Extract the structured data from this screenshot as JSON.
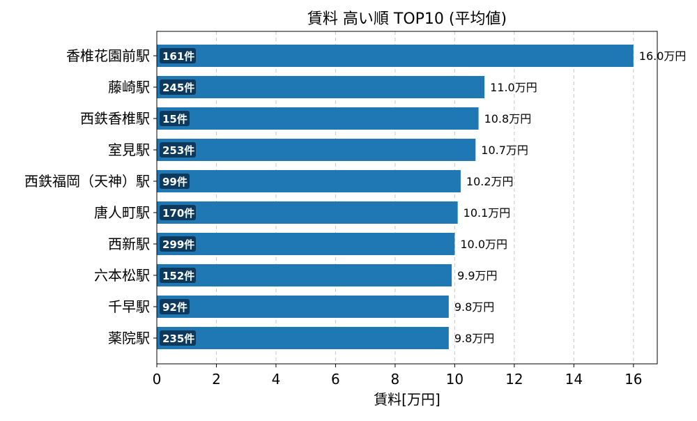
{
  "chart_data": {
    "type": "bar",
    "orientation": "horizontal",
    "title": "賃料 高い順 TOP10 (平均値)",
    "xlabel": "賃料[万円]",
    "ylabel": "",
    "xlim": [
      0,
      16.8
    ],
    "x_ticks": [
      0,
      2,
      4,
      6,
      8,
      10,
      12,
      14,
      16
    ],
    "grid": "x-dashed",
    "categories": [
      "香椎花園前駅",
      "藤崎駅",
      "西鉄香椎駅",
      "室見駅",
      "西鉄福岡（天神）駅",
      "唐人町駅",
      "西新駅",
      "六本松駅",
      "千早駅",
      "薬院駅"
    ],
    "values": [
      16.0,
      11.0,
      10.8,
      10.7,
      10.2,
      10.1,
      10.0,
      9.9,
      9.8,
      9.8
    ],
    "value_labels": [
      "16.0万円",
      "11.0万円",
      "10.8万円",
      "10.7万円",
      "10.2万円",
      "10.1万円",
      "10.0万円",
      "9.9万円",
      "9.8万円",
      "9.8万円"
    ],
    "count_labels": [
      "161件",
      "245件",
      "15件",
      "253件",
      "99件",
      "170件",
      "299件",
      "152件",
      "92件",
      "235件"
    ],
    "colors": {
      "bar": "#1f77b4",
      "badge": "#0d3a5c",
      "badge_text": "#ffffff",
      "grid": "#c8c8c8",
      "text": "#000000"
    }
  }
}
